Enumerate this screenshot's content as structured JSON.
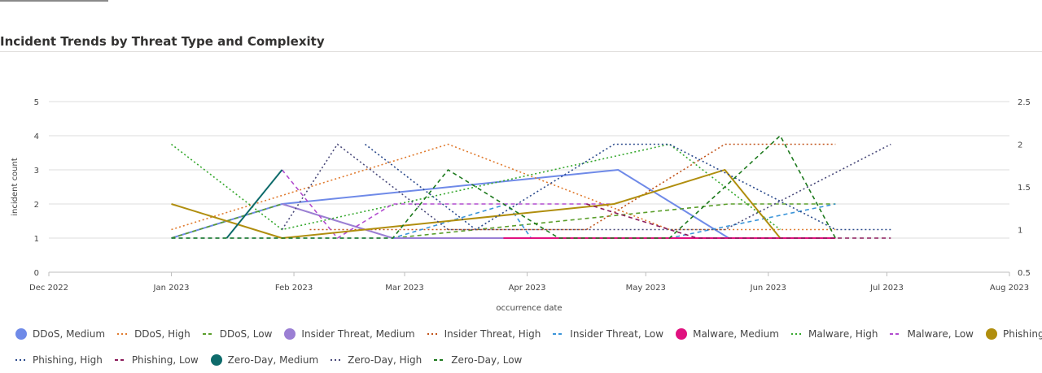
{
  "title": "Incident Trends by Threat Type and Complexity",
  "chart_data": {
    "type": "line",
    "xlabel": "occurrence date",
    "ylabel": "incident count",
    "x_ticks": [
      "Dec 2022",
      "Jan 2023",
      "Feb 2023",
      "Mar 2023",
      "Apr 2023",
      "May 2023",
      "Jun 2023",
      "Jul 2023",
      "Aug 2023"
    ],
    "y_left_ticks": [
      "0",
      "1",
      "2",
      "3",
      "4",
      "5"
    ],
    "y_right_ticks": [
      "0.5",
      "1",
      "1.5",
      "2",
      "2.5"
    ],
    "ylim_left": [
      0,
      5
    ],
    "ylim_right": [
      0.5,
      2.5
    ],
    "grid": true,
    "legend_position": "bottom",
    "series": [
      {
        "name": "DDoS, Medium",
        "axis": "left",
        "style": "solid",
        "color": "#6f8ae8",
        "points": [
          [
            "2023-01-01",
            1
          ],
          [
            "2023-01-29",
            2
          ],
          [
            "2023-04-24",
            3
          ],
          [
            "2023-05-22",
            1
          ]
        ]
      },
      {
        "name": "DDoS, High",
        "axis": "right",
        "style": "dotted",
        "color": "#e07b2f",
        "points": [
          [
            "2023-01-01",
            1
          ],
          [
            "2023-03-12",
            2
          ],
          [
            "2023-05-07",
            1
          ],
          [
            "2023-06-18",
            1
          ]
        ]
      },
      {
        "name": "DDoS, Low",
        "axis": "left",
        "style": "dashed",
        "color": "#5a9e2a",
        "points": [
          [
            "2023-01-01",
            1
          ],
          [
            "2023-01-29",
            2
          ],
          [
            "2023-02-26",
            1
          ],
          [
            "2023-05-22",
            2
          ],
          [
            "2023-06-18",
            2
          ]
        ]
      },
      {
        "name": "Insider Threat, Medium",
        "axis": "left",
        "style": "solid",
        "color": "#9b7fd4",
        "points": [
          [
            "2023-01-29",
            2
          ],
          [
            "2023-02-26",
            1
          ],
          [
            "2023-05-22",
            1
          ]
        ]
      },
      {
        "name": "Insider Threat, High",
        "axis": "right",
        "style": "dotted",
        "color": "#c2541b",
        "points": [
          [
            "2023-02-05",
            1
          ],
          [
            "2023-04-16",
            1
          ],
          [
            "2023-05-21",
            2
          ],
          [
            "2023-06-18",
            2
          ]
        ]
      },
      {
        "name": "Insider Threat, Low",
        "axis": "left",
        "style": "dashed",
        "color": "#3b95d9",
        "points": [
          [
            "2023-01-01",
            1
          ],
          [
            "2023-02-26",
            1
          ],
          [
            "2023-03-27",
            2
          ],
          [
            "2023-04-02",
            1
          ],
          [
            "2023-05-07",
            1
          ],
          [
            "2023-06-18",
            2
          ]
        ]
      },
      {
        "name": "Malware, Medium",
        "axis": "left",
        "style": "solid",
        "color": "#e0117f",
        "points": [
          [
            "2023-03-26",
            1
          ],
          [
            "2023-05-21",
            1
          ],
          [
            "2023-06-18",
            1
          ]
        ]
      },
      {
        "name": "Malware, High",
        "axis": "right",
        "style": "dotted",
        "color": "#36a82e",
        "points": [
          [
            "2023-01-01",
            2
          ],
          [
            "2023-01-29",
            1
          ],
          [
            "2023-05-07",
            2
          ],
          [
            "2023-06-04",
            1
          ]
        ]
      },
      {
        "name": "Malware, Low",
        "axis": "left",
        "style": "dashed",
        "color": "#b24ccf",
        "points": [
          [
            "2023-01-29",
            3
          ],
          [
            "2023-02-12",
            1
          ],
          [
            "2023-02-26",
            2
          ],
          [
            "2023-03-26",
            2
          ],
          [
            "2023-04-23",
            2
          ]
        ]
      },
      {
        "name": "Phishing, Medium",
        "axis": "left",
        "style": "solid",
        "color": "#b08e0e",
        "points": [
          [
            "2023-01-01",
            2
          ],
          [
            "2023-01-29",
            1
          ],
          [
            "2023-04-23",
            2
          ],
          [
            "2023-05-21",
            3
          ],
          [
            "2023-06-04",
            1
          ]
        ]
      },
      {
        "name": "Phishing, High",
        "axis": "right",
        "style": "dotted",
        "color": "#2b4a8c",
        "points": [
          [
            "2023-02-19",
            2
          ],
          [
            "2023-03-19",
            1
          ],
          [
            "2023-04-23",
            2
          ],
          [
            "2023-05-07",
            2
          ],
          [
            "2023-06-18",
            1
          ],
          [
            "2023-07-02",
            1
          ]
        ]
      },
      {
        "name": "Phishing, Low",
        "axis": "left",
        "style": "dashed",
        "color": "#8b1a5a",
        "points": [
          [
            "2023-04-16",
            2
          ],
          [
            "2023-05-14",
            1
          ],
          [
            "2023-07-02",
            1
          ]
        ]
      },
      {
        "name": "Zero-Day, Medium",
        "axis": "left",
        "style": "solid",
        "color": "#0e6b6b",
        "points": [
          [
            "2023-01-15",
            1
          ],
          [
            "2023-01-29",
            3
          ]
        ]
      },
      {
        "name": "Zero-Day, High",
        "axis": "right",
        "style": "dotted",
        "color": "#4a4a7a",
        "points": [
          [
            "2023-01-29",
            1
          ],
          [
            "2023-02-12",
            2
          ],
          [
            "2023-03-12",
            1
          ],
          [
            "2023-04-23",
            1
          ],
          [
            "2023-05-21",
            1
          ],
          [
            "2023-07-02",
            2
          ]
        ]
      },
      {
        "name": "Zero-Day, Low",
        "axis": "left",
        "style": "dashed",
        "color": "#1e7a1e",
        "points": [
          [
            "2023-01-01",
            1
          ],
          [
            "2023-02-26",
            1
          ],
          [
            "2023-03-12",
            3
          ],
          [
            "2023-04-09",
            1
          ],
          [
            "2023-05-07",
            1
          ],
          [
            "2023-06-04",
            4
          ],
          [
            "2023-06-18",
            1
          ]
        ]
      }
    ]
  }
}
